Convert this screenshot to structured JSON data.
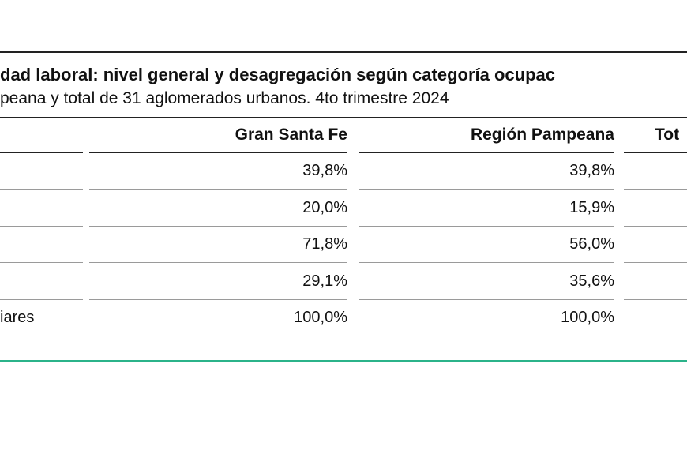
{
  "table": {
    "title": "dad laboral: nivel general y desagregación según categoría ocupac",
    "subtitle": "peana y total de 31 aglomerados urbanos. 4to trimestre 2024",
    "headers": [
      "Gran Santa Fe",
      "Región Pampeana",
      "Tot"
    ],
    "rows": [
      {
        "values": [
          "39,8%",
          "39,8%"
        ]
      },
      {
        "values": [
          "20,0%",
          "15,9%"
        ]
      },
      {
        "values": [
          "71,8%",
          "56,0%"
        ]
      },
      {
        "values": [
          "29,1%",
          "35,6%"
        ]
      },
      {
        "label": "iares",
        "values": [
          "100,0%",
          "100,0%"
        ]
      }
    ]
  }
}
